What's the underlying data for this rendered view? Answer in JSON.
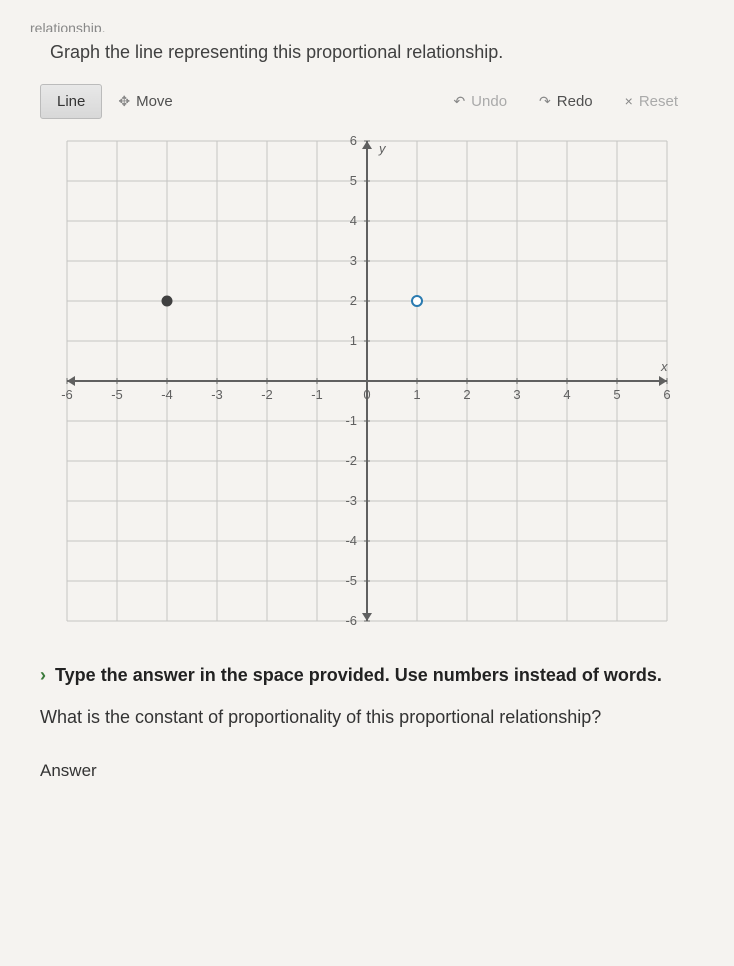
{
  "cutoff_text": "relationship.",
  "instruction": "Graph the line representing this proportional relationship.",
  "toolbar": {
    "line": "Line",
    "move": "Move",
    "undo": "Undo",
    "redo": "Redo",
    "reset": "Reset"
  },
  "chart": {
    "type": "scatter",
    "xmin": -6,
    "xmax": 6,
    "ymin": -6,
    "ymax": 6,
    "xtick_step": 1,
    "ytick_step": 1,
    "xlabel": "x",
    "ylabel": "y",
    "tick_labels_x": [
      "-6",
      "-5",
      "-4",
      "-3",
      "-2",
      "-1",
      "0",
      "1",
      "2",
      "3",
      "4",
      "5",
      "6"
    ],
    "tick_labels_y_pos": [
      "1",
      "2",
      "3",
      "4",
      "5",
      "6"
    ],
    "tick_labels_y_neg": [
      "-1",
      "-2",
      "-3",
      "-4",
      "-5",
      "-6"
    ],
    "grid_color": "#c5c5c2",
    "axis_color": "#606060",
    "tick_font_size": 13,
    "tick_color": "#606060",
    "background_color": "#f5f3f0",
    "points": [
      {
        "x": -4,
        "y": 2,
        "fill": "#404040",
        "stroke": "#404040",
        "r": 5
      },
      {
        "x": 1,
        "y": 2,
        "fill": "#ffffff",
        "stroke": "#2a7ab0",
        "r": 5,
        "stroke_width": 2
      }
    ]
  },
  "hint_prefix": "›",
  "hint_text": "Type the answer in the space provided. Use numbers instead of words.",
  "question": "What is the constant of proportionality of this proportional relationship?",
  "answer_label": "Answer"
}
